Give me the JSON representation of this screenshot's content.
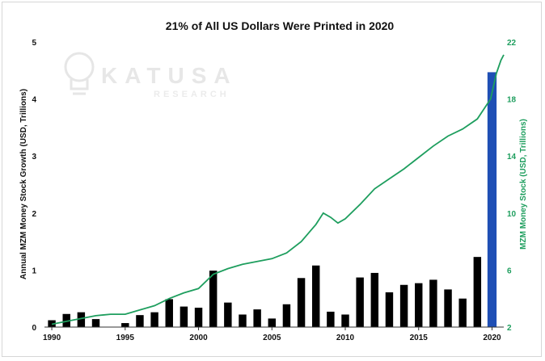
{
  "chart_data": {
    "type": "bar",
    "title": "21% of All US Dollars Were Printed in 2020",
    "ylabel": "Annual MZM Money Stock Growth (USD, Trillions)",
    "y2label": "MZM Money Stock (USD, Trillions)",
    "ylim": [
      0,
      5
    ],
    "y2lim": [
      2,
      22
    ],
    "yticks": [
      "0",
      "1",
      "2",
      "3",
      "4",
      "5"
    ],
    "y2ticks": [
      "2",
      "6",
      "10",
      "14",
      "18",
      "22"
    ],
    "xlim": [
      1989.5,
      2020.8
    ],
    "xticks": [
      "1990",
      "1995",
      "2000",
      "2005",
      "2010",
      "2015",
      "2020"
    ],
    "watermark": {
      "name": "KATUSA",
      "sub": "RESEARCH"
    },
    "colors": {
      "bars": "#000000",
      "highlight_bar": "#1f4fb5",
      "line": "#1e9e5e",
      "right_axis": "#1e9e5e"
    },
    "series": [
      {
        "type": "bar",
        "axis": "left",
        "x": [
          1990,
          1991,
          1992,
          1993,
          1994,
          1995,
          1996,
          1997,
          1998,
          1999,
          2000,
          2001,
          2002,
          2003,
          2004,
          2005,
          2006,
          2007,
          2008,
          2009,
          2010,
          2011,
          2012,
          2013,
          2014,
          2015,
          2016,
          2017,
          2018,
          2019,
          2020
        ],
        "values": [
          0.12,
          0.23,
          0.26,
          0.14,
          0.0,
          0.07,
          0.21,
          0.26,
          0.49,
          0.36,
          0.34,
          0.99,
          0.43,
          0.22,
          0.31,
          0.15,
          0.4,
          0.86,
          1.08,
          0.27,
          0.22,
          0.87,
          0.95,
          0.61,
          0.74,
          0.77,
          0.83,
          0.66,
          0.5,
          1.23,
          4.47
        ],
        "highlight_index": 30
      },
      {
        "type": "line",
        "axis": "right",
        "x": [
          1990,
          1991,
          1992,
          1993,
          1994,
          1995,
          1996,
          1997,
          1998,
          1999,
          2000,
          2001,
          2002,
          2003,
          2004,
          2005,
          2006,
          2007,
          2008,
          2008.5,
          2009,
          2009.5,
          2010,
          2011,
          2012,
          2013,
          2014,
          2015,
          2016,
          2017,
          2018,
          2019,
          2019.9,
          2020.3,
          2020.6,
          2020.8
        ],
        "values": [
          2.2,
          2.4,
          2.6,
          2.8,
          2.9,
          2.9,
          3.2,
          3.5,
          4.0,
          4.4,
          4.7,
          5.7,
          6.1,
          6.4,
          6.6,
          6.8,
          7.2,
          8.0,
          9.2,
          10.0,
          9.7,
          9.3,
          9.6,
          10.6,
          11.7,
          12.4,
          13.1,
          13.9,
          14.7,
          15.4,
          15.9,
          16.6,
          18.0,
          19.8,
          20.7,
          21.1
        ]
      }
    ]
  }
}
